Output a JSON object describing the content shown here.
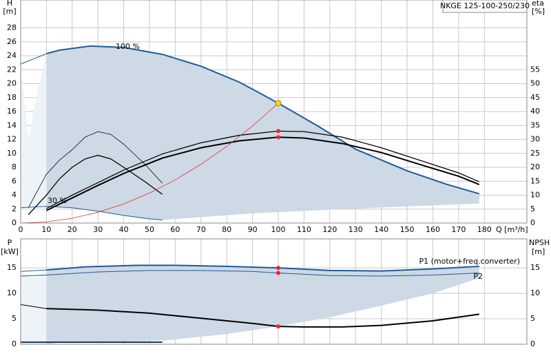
{
  "chart_data": [
    {
      "type": "line",
      "title": "NKGE 125-100-250/230",
      "ylabel": "H",
      "yunit": "[m]",
      "y2label": "eta",
      "y2unit": "[%]",
      "xlabel": "Q [m³/h]",
      "xlim": [
        0,
        196.5
      ],
      "xticks": [
        0,
        10,
        20,
        30,
        40,
        50,
        60,
        70,
        80,
        90,
        100,
        110,
        120,
        130,
        140,
        150,
        160,
        170,
        180
      ],
      "tick_labels": true,
      "ylim": [
        0,
        32
      ],
      "yticks": [
        0,
        2,
        4,
        6,
        8,
        10,
        12,
        14,
        16,
        18,
        20,
        22,
        24,
        26,
        28
      ],
      "y2lim": [
        0,
        80
      ],
      "y2ticks": [
        0,
        5,
        10,
        15,
        20,
        25,
        30,
        35,
        40,
        45,
        50,
        55
      ],
      "grid": true,
      "annotations": [
        "100 %",
        "30 %"
      ],
      "areas": [
        {
          "color": "#cdd9e5",
          "x": [
            10,
            15,
            27,
            40,
            55,
            70,
            85,
            100,
            115,
            130,
            150,
            165,
            178,
            178,
            150,
            120,
            90,
            55,
            50,
            40,
            30,
            20,
            10
          ],
          "values": [
            24.3,
            24.8,
            25.4,
            25.2,
            24.2,
            22.5,
            20.2,
            17.2,
            14,
            10.6,
            7.5,
            5.6,
            4.2,
            2.8,
            2.4,
            1.9,
            1.4,
            0.45,
            0.6,
            1.1,
            1.7,
            2.2,
            2.4
          ]
        },
        {
          "color": "#eef3f8",
          "x": [
            0,
            3,
            6,
            10,
            10,
            0
          ],
          "values": [
            22.8,
            12,
            18,
            24.3,
            2.4,
            2.2
          ]
        }
      ],
      "series": [
        {
          "color": "#1f5a96",
          "width": 2,
          "x": [
            10,
            15,
            27,
            40,
            55,
            70,
            85,
            100,
            115,
            130,
            150,
            165,
            178
          ],
          "values": [
            24.3,
            24.8,
            25.4,
            25.2,
            24.2,
            22.5,
            20.2,
            17.2,
            14,
            10.6,
            7.5,
            5.6,
            4.2
          ]
        },
        {
          "color": "#1f5a96",
          "width": 1,
          "x": [
            0,
            10
          ],
          "values": [
            22.8,
            24.3
          ]
        },
        {
          "color": "#1f5a96",
          "width": 1,
          "x": [
            0,
            10,
            20,
            30,
            40,
            50,
            55
          ],
          "values": [
            2.2,
            2.4,
            2.2,
            1.7,
            1.1,
            0.6,
            0.45
          ]
        },
        {
          "color": "#000000",
          "width": 1.3,
          "axis": "y2",
          "x": [
            10,
            20,
            30,
            40,
            55,
            70,
            85,
            100,
            110,
            125,
            140,
            155,
            170,
            178
          ],
          "values": [
            5.2,
            10,
            14.5,
            19,
            24.8,
            28.8,
            31.5,
            33,
            32.8,
            30.8,
            27,
            22.5,
            18,
            14.8
          ]
        },
        {
          "color": "#000000",
          "width": 2,
          "axis": "y2",
          "x": [
            10,
            20,
            30,
            40,
            55,
            70,
            85,
            100,
            110,
            125,
            140,
            155,
            170,
            178
          ],
          "values": [
            4.5,
            9,
            13.5,
            17.8,
            23.3,
            27,
            29.5,
            30.8,
            30.5,
            28.5,
            25.3,
            21,
            16.8,
            13.8
          ]
        },
        {
          "color": "#000000",
          "width": 0.8,
          "axis": "y2",
          "x": [
            3,
            10,
            15,
            20,
            25,
            30,
            35,
            40,
            48,
            55
          ],
          "values": [
            5.5,
            17.5,
            22.5,
            26.3,
            30.8,
            32.8,
            31.8,
            28.3,
            21.3,
            14.3
          ]
        },
        {
          "color": "#000000",
          "width": 1.3,
          "axis": "y2",
          "x": [
            3,
            10,
            15,
            20,
            25,
            30,
            35,
            40,
            48,
            55
          ],
          "values": [
            3,
            10,
            15.8,
            20,
            23,
            24.3,
            23,
            20,
            15,
            10.3
          ]
        },
        {
          "color": "#e03030",
          "width": 0.8,
          "x": [
            0,
            10,
            20,
            30,
            40,
            50,
            60,
            70,
            80,
            90,
            100
          ],
          "values": [
            0,
            0.17,
            0.69,
            1.55,
            2.75,
            4.3,
            6.19,
            8.43,
            11.01,
            13.93,
            17.2
          ]
        }
      ],
      "points": [
        {
          "x": 100,
          "y": 17.2,
          "color": "#ffd21f"
        },
        {
          "x": 100,
          "y": 33,
          "color": "#ff2020",
          "axis": "y2"
        },
        {
          "x": 100,
          "y": 30.8,
          "color": "#ff2020",
          "axis": "y2"
        }
      ]
    },
    {
      "type": "line",
      "ylabel": "P",
      "yunit": "[kW]",
      "y2label": "NPSH",
      "y2unit": "[m]",
      "xlim": [
        0,
        196.5
      ],
      "xticks": [
        0,
        10,
        20,
        30,
        40,
        50,
        60,
        70,
        80,
        90,
        100,
        110,
        120,
        130,
        140,
        150,
        160,
        170,
        180
      ],
      "tick_labels": false,
      "ylim": [
        0,
        20.7
      ],
      "yticks": [
        0,
        5,
        10,
        15
      ],
      "y2lim": [
        0,
        20.7
      ],
      "y2ticks": [
        0,
        5,
        10,
        15
      ],
      "grid": true,
      "annotations": [
        "P1 (motor+freq.converter)",
        "P2"
      ],
      "areas": [
        {
          "color": "#cdd9e5",
          "x": [
            10,
            25,
            45,
            60,
            80,
            100,
            120,
            140,
            160,
            178,
            178,
            160,
            140,
            120,
            100,
            80,
            55,
            15,
            10
          ],
          "values": [
            14.6,
            15.2,
            15.5,
            15.5,
            15.3,
            15,
            14.5,
            14.4,
            14.8,
            15.3,
            13,
            10,
            7.6,
            5.3,
            3.5,
            2,
            0.7,
            0.3,
            0
          ]
        },
        {
          "color": "#eef3f8",
          "x": [
            0,
            5,
            10,
            10,
            0
          ],
          "values": [
            14.3,
            13,
            14.6,
            0,
            0
          ]
        }
      ],
      "series": [
        {
          "color": "#1f5a96",
          "width": 2,
          "x": [
            10,
            25,
            45,
            60,
            80,
            100,
            120,
            140,
            160,
            178
          ],
          "values": [
            14.6,
            15.2,
            15.5,
            15.5,
            15.3,
            15,
            14.5,
            14.4,
            14.8,
            15.3
          ]
        },
        {
          "color": "#1f5a96",
          "width": 1,
          "x": [
            0,
            10
          ],
          "values": [
            14.3,
            14.6
          ]
        },
        {
          "color": "#1f5a96",
          "width": 1,
          "x": [
            0,
            10,
            30,
            50,
            70,
            90,
            100,
            120,
            140,
            160,
            178
          ],
          "values": [
            13.4,
            13.6,
            14.2,
            14.5,
            14.5,
            14.3,
            14,
            13.5,
            13.4,
            13.6,
            14
          ]
        },
        {
          "color": "#000000",
          "width": 2,
          "axis": "y2",
          "x": [
            10,
            30,
            50,
            70,
            90,
            100,
            110,
            125,
            140,
            160,
            178
          ],
          "values": [
            7,
            6.7,
            6.1,
            5.1,
            4.1,
            3.5,
            3.4,
            3.4,
            3.7,
            4.6,
            5.9
          ]
        },
        {
          "color": "#000000",
          "width": 1,
          "axis": "y2",
          "x": [
            0,
            10
          ],
          "values": [
            7.8,
            7
          ]
        },
        {
          "color": "#1a3a5a",
          "width": 2,
          "x": [
            0,
            55
          ],
          "values": [
            0.4,
            0.4
          ]
        }
      ],
      "points": [
        {
          "x": 100,
          "y": 15,
          "color": "#ff2020"
        },
        {
          "x": 100,
          "y": 14,
          "color": "#ff2020"
        },
        {
          "x": 100,
          "y": 3.5,
          "color": "#ff2020",
          "axis": "y2"
        }
      ]
    }
  ]
}
